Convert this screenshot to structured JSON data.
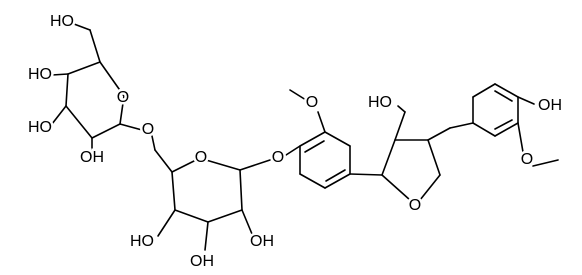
{
  "molecule": {
    "labels": [
      "HO",
      "HO",
      "HO",
      "OH",
      "O",
      "O",
      "O",
      "O",
      "HO",
      "OH",
      "OH",
      "O",
      "HO",
      "O",
      "OH",
      "O"
    ]
  }
}
